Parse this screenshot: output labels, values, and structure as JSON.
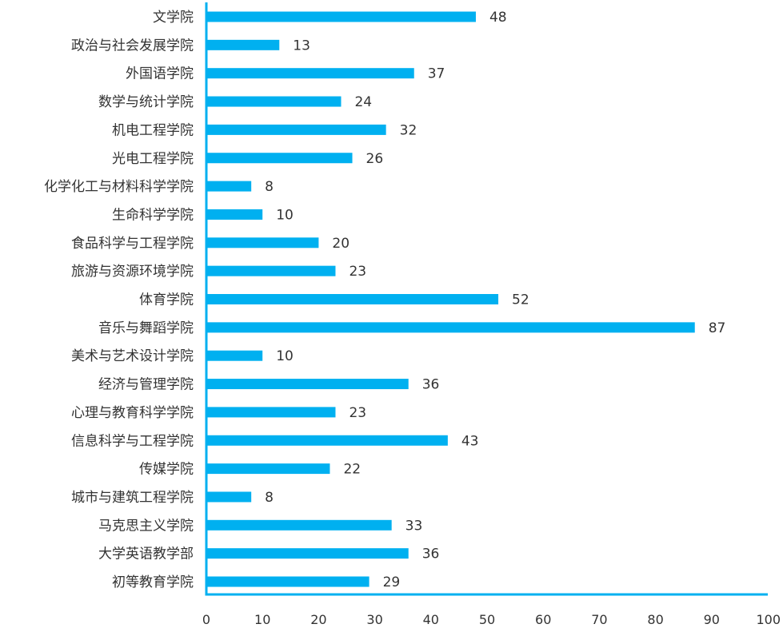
{
  "chart_data": {
    "type": "bar",
    "orientation": "horizontal",
    "title": "",
    "xlabel": "",
    "ylabel": "",
    "categories": [
      "文学院",
      "政治与社会发展学院",
      "外国语学院",
      "数学与统计学院",
      "机电工程学院",
      "光电工程学院",
      "化学化工与材料科学学院",
      "生命科学学院",
      "食品科学与工程学院",
      "旅游与资源环境学院",
      "体育学院",
      "音乐与舞蹈学院",
      "美术与艺术设计学院",
      "经济与管理学院",
      "心理与教育科学学院",
      "信息科学与工程学院",
      "传媒学院",
      "城市与建筑工程学院",
      "马克思主义学院",
      "大学英语教学部",
      "初等教育学院"
    ],
    "values": [
      48,
      13,
      37,
      24,
      32,
      26,
      8,
      10,
      20,
      23,
      52,
      87,
      10,
      36,
      23,
      43,
      22,
      8,
      33,
      36,
      29
    ],
    "xlim": [
      0,
      100
    ],
    "xticks": [
      "0",
      "10",
      "20",
      "30",
      "40",
      "50",
      "60",
      "70",
      "80",
      "90",
      "100"
    ],
    "grid": false,
    "legend": "none",
    "bar_color": "#00b0f0",
    "axis_color": "#00b0f0"
  }
}
